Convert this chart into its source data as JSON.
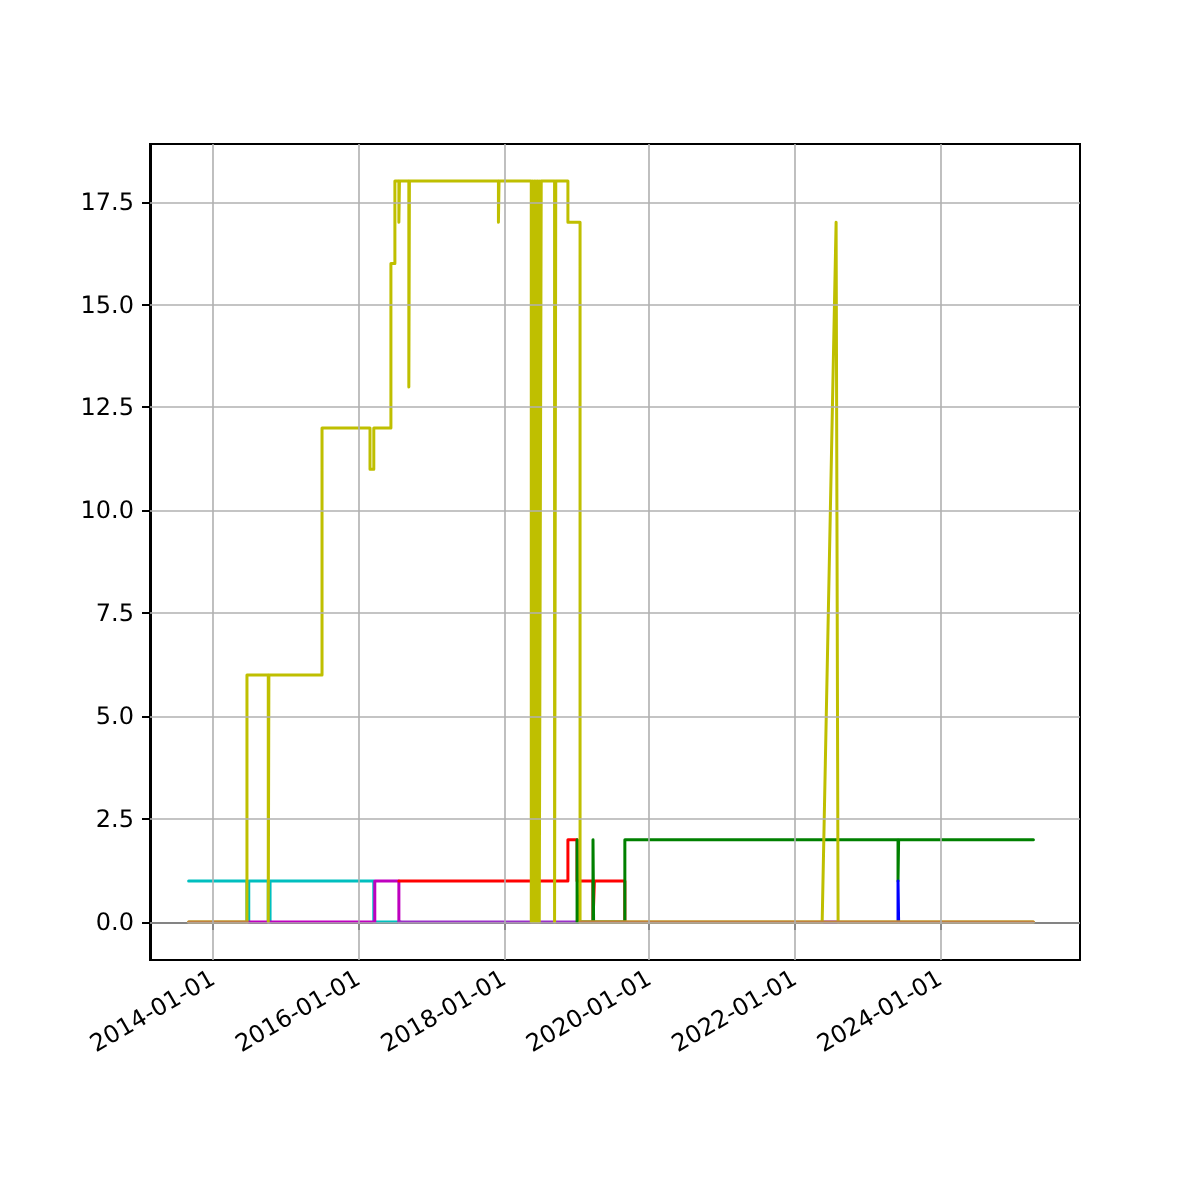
{
  "chart_data": {
    "type": "line",
    "xlim": [
      "2013-02-20",
      "2025-12-05"
    ],
    "ylim": [
      -0.92,
      18.9
    ],
    "xticks": [
      "2014-01-01",
      "2016-01-01",
      "2018-01-01",
      "2020-01-01",
      "2022-01-01",
      "2024-01-01"
    ],
    "yticks": [
      {
        "value": 0,
        "label": "0.0"
      },
      2.5,
      {
        "value": 5,
        "label": "5.0"
      },
      7.5,
      {
        "value": 10,
        "label": "10.0"
      },
      12.5,
      {
        "value": 15,
        "label": "15.0"
      },
      17.5
    ],
    "grid": true,
    "marker": "none",
    "line_style": "solid",
    "series": [
      {
        "color": "#00bfbf",
        "x": [
          "2013-09-02",
          "2014-06-22",
          "2014-06-22",
          "2014-07-01",
          "2014-07-01",
          "2014-10-07",
          "2014-10-07",
          "2014-10-16",
          "2014-10-16",
          "2016-03-20",
          "2016-03-20",
          "2016-07-24"
        ],
        "values": [
          1,
          1,
          0,
          0,
          1,
          1,
          0,
          0,
          1,
          1,
          0,
          0
        ]
      },
      {
        "color": "#bf00bf",
        "x": [
          "2014-06-22",
          "2016-03-25",
          "2016-03-25",
          "2016-07-24",
          "2016-07-24",
          "2016-08-01"
        ],
        "values": [
          0,
          0,
          1,
          1,
          0,
          0
        ]
      },
      {
        "color": "#9a30c8",
        "x": [
          "2016-07-24",
          "2019-01-20",
          "2019-01-21",
          "2022-05-20",
          "2022-08-08"
        ],
        "values": [
          0,
          0,
          null,
          0,
          0
        ]
      },
      {
        "color": "#ff0000",
        "x": [
          "2016-07-24",
          "2018-11-20",
          "2018-11-20",
          "2019-01-05",
          "2019-01-05",
          "2019-03-26",
          "2019-03-26",
          "2019-04-02",
          "2019-04-02",
          "2019-09-02",
          "2019-09-02"
        ],
        "values": [
          1,
          1,
          2,
          2,
          1,
          1,
          0,
          0,
          1,
          1,
          0
        ]
      },
      {
        "color": "#008000",
        "x": [
          "2019-01-05",
          "2019-01-05",
          "2019-01-08",
          "2019-01-08",
          "2019-03-26",
          "2019-03-26",
          "2019-03-29",
          "2019-03-29",
          "2019-09-02",
          "2019-09-02",
          "2023-06-05",
          "2023-06-05",
          "2023-06-08",
          "2023-06-08",
          "2025-04-15"
        ],
        "values": [
          0,
          2,
          2,
          0,
          0,
          2,
          2,
          0,
          0,
          2,
          2,
          1,
          1,
          2,
          2
        ]
      },
      {
        "color": "#0000ff",
        "x": [
          "2023-06-05",
          "2023-06-05",
          "2023-06-08",
          "2023-06-08"
        ],
        "values": [
          0,
          1,
          1,
          0
        ]
      },
      {
        "color": "#bfbf00",
        "x": [
          "2013-09-02",
          "2014-06-22",
          "2014-06-22",
          "2014-10-07",
          "2014-10-07",
          "2014-10-10",
          "2014-10-10",
          "2015-07-04",
          "2015-07-04",
          "2016-03-01",
          "2016-03-01",
          "2016-03-20",
          "2016-03-20",
          "2016-06-14",
          "2016-06-14",
          "2016-07-04",
          "2016-07-04",
          "2016-07-24",
          "2016-07-24",
          "2016-07-27",
          "2016-07-27",
          "2016-09-12",
          "2016-09-12",
          "2016-09-15",
          "2016-09-15",
          "2017-12-06",
          "2017-12-06",
          "2017-12-09",
          "2017-12-09",
          "2018-05-20",
          "2018-05-20",
          "2018-05-28",
          "2018-05-28",
          "2018-06-05",
          "2018-06-05",
          "2018-06-13",
          "2018-06-13",
          "2018-06-21",
          "2018-06-21",
          "2018-06-29",
          "2018-06-29",
          "2018-07-09",
          "2018-07-09",
          "2018-09-14",
          "2018-09-14",
          "2018-09-20",
          "2018-09-20",
          "2018-11-20",
          "2018-11-20",
          "2019-01-20",
          "2019-01-20",
          "2022-05-20",
          "2022-07-29",
          "2022-08-08",
          "2025-04-15"
        ],
        "values": [
          0,
          0,
          6,
          6,
          0,
          6,
          6,
          6,
          12,
          12,
          11,
          11,
          12,
          12,
          16,
          16,
          18,
          18,
          17,
          18,
          18,
          18,
          13,
          18,
          18,
          18,
          17,
          18,
          18,
          18,
          0,
          18,
          0,
          18,
          0,
          18,
          0,
          18,
          0,
          18,
          0,
          18,
          18,
          18,
          0,
          18,
          18,
          18,
          17,
          17,
          0,
          0,
          17,
          0,
          0
        ]
      },
      {
        "color": "#c08040",
        "x": [
          "2013-09-02",
          "2014-06-22",
          "2014-06-23",
          "2019-01-20",
          "2025-04-15"
        ],
        "values": [
          0,
          0,
          null,
          0,
          0
        ]
      }
    ]
  }
}
